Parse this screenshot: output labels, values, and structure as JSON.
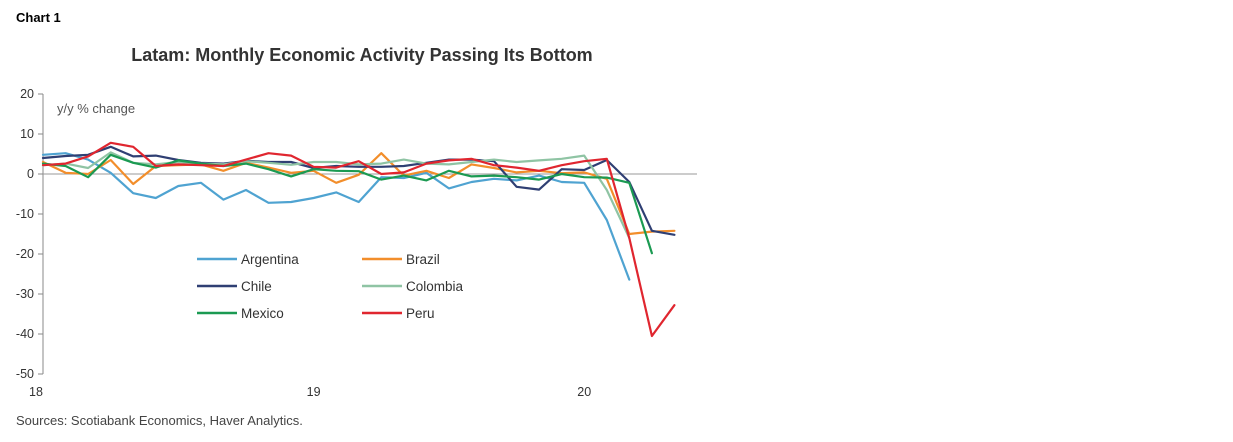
{
  "chart_label": "Chart 1",
  "source": "Sources: Scotiabank Economics, Haver Analytics.",
  "chart_data": {
    "type": "line",
    "title": "Latam: Monthly Economic Activity Passing Its Bottom",
    "ylabel": "y/y % change",
    "xlabel": "",
    "ylim": [
      -50,
      20
    ],
    "yticks": [
      20,
      10,
      0,
      -10,
      -20,
      -30,
      -40,
      -50
    ],
    "xlim": [
      0,
      29
    ],
    "xticks": [
      {
        "x": 0,
        "label": "18"
      },
      {
        "x": 12,
        "label": "19"
      },
      {
        "x": 24,
        "label": "20"
      }
    ],
    "x_unit": "months since Jan 2018",
    "zero_line": true,
    "legend_placement": "lower-left inside, two columns",
    "series": [
      {
        "name": "Argentina",
        "color": "#4fa3d1",
        "values": [
          4.8,
          5.2,
          3.6,
          0.3,
          -4.8,
          -6.0,
          -3.0,
          -2.2,
          -6.4,
          -4.0,
          -7.2,
          -7.0,
          -6.0,
          -4.6,
          -7.0,
          -0.8,
          -1.0,
          0.3,
          -3.6,
          -2.0,
          -1.2,
          -1.6,
          -0.4,
          -2.0,
          -2.2,
          -11.5,
          -26.4
        ]
      },
      {
        "name": "Brazil",
        "color": "#f28e2b",
        "values": [
          3.0,
          0.3,
          0.0,
          3.5,
          -2.5,
          2.0,
          2.2,
          2.4,
          0.8,
          2.8,
          1.6,
          0.3,
          0.8,
          -2.2,
          -0.2,
          5.2,
          -0.4,
          0.8,
          -1.0,
          2.4,
          1.5,
          0.4,
          0.8,
          0.2,
          0.4,
          -1.2,
          -15.0,
          -14.4,
          -14.2
        ]
      },
      {
        "name": "Chile",
        "color": "#2f3f73",
        "values": [
          4.0,
          4.5,
          4.8,
          6.8,
          4.4,
          4.6,
          3.5,
          2.8,
          2.6,
          3.3,
          3.0,
          3.0,
          1.5,
          2.0,
          1.8,
          1.8,
          2.0,
          2.8,
          3.6,
          3.6,
          3.2,
          -3.2,
          -3.9,
          1.2,
          1.0,
          3.5,
          -2.0,
          -14.2,
          -15.2
        ]
      },
      {
        "name": "Colombia",
        "color": "#8fc4a4",
        "values": [
          2.2,
          2.6,
          1.5,
          5.4,
          2.8,
          2.4,
          3.0,
          2.6,
          2.4,
          3.2,
          2.8,
          2.3,
          3.0,
          3.0,
          2.4,
          2.6,
          3.6,
          2.6,
          2.4,
          3.0,
          3.6,
          3.0,
          3.4,
          3.8,
          4.6,
          -4.0,
          -16.0
        ]
      },
      {
        "name": "Mexico",
        "color": "#1b9a52",
        "values": [
          2.6,
          2.0,
          -0.8,
          4.8,
          2.8,
          1.6,
          3.4,
          2.6,
          2.0,
          2.6,
          1.2,
          -0.6,
          1.2,
          0.8,
          0.7,
          -1.4,
          -0.4,
          -1.6,
          0.8,
          -0.6,
          -0.4,
          -0.8,
          -1.4,
          0.0,
          -0.8,
          -0.9,
          -2.2,
          -19.8
        ]
      },
      {
        "name": "Peru",
        "color": "#e0262f",
        "values": [
          2.2,
          2.6,
          4.4,
          7.8,
          6.8,
          2.0,
          2.4,
          2.2,
          2.0,
          3.6,
          5.2,
          4.6,
          1.8,
          1.6,
          3.2,
          0.0,
          0.4,
          2.6,
          3.4,
          3.8,
          2.2,
          1.6,
          0.8,
          2.2,
          3.2,
          3.8,
          -16.0,
          -40.5,
          -32.8
        ]
      }
    ]
  }
}
